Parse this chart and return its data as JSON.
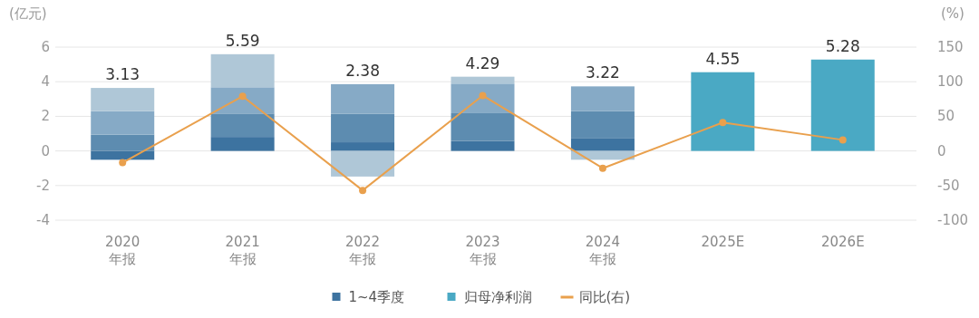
{
  "chart_data": {
    "type": "bar",
    "stacked": true,
    "categories": [
      "2020\n年报",
      "2021\n年报",
      "2022\n年报",
      "2023\n年报",
      "2024\n年报",
      "2025E",
      "2026E"
    ],
    "ylabel": "(亿元)",
    "y2label": "(%)",
    "ylim": [
      -4,
      6
    ],
    "yticks": [
      -4,
      -2,
      0,
      2,
      4,
      6
    ],
    "y2lim": [
      -100,
      150
    ],
    "y2ticks": [
      -100,
      -50,
      0,
      50,
      100,
      150
    ],
    "grid": "y",
    "legend": "bottom",
    "totals": [
      "3.13",
      "5.59",
      "2.38",
      "4.29",
      "3.22",
      "4.55",
      "5.28"
    ],
    "series": [
      {
        "name": "1~4季度",
        "color": "#3d73a0",
        "values": [
          -0.51,
          0.81,
          0.5,
          0.58,
          0.75,
          null,
          null
        ]
      },
      {
        "color": "#5d8cb0",
        "values": [
          0.94,
          1.35,
          1.64,
          1.6,
          1.55,
          null,
          null
        ]
      },
      {
        "color": "#86aac6",
        "values": [
          1.36,
          1.52,
          1.72,
          1.71,
          1.43,
          null,
          null
        ]
      },
      {
        "color": "#afc7d7",
        "values": [
          1.34,
          1.91,
          -1.48,
          0.4,
          -0.51,
          null,
          null
        ]
      },
      {
        "name": "归母净利润",
        "color": "#4aa9c4",
        "values": [
          null,
          null,
          null,
          null,
          null,
          4.55,
          5.28
        ]
      },
      {
        "name": "同比(右)",
        "type": "line",
        "axis": "y2",
        "color": "#e9a04d",
        "marker": "circle",
        "values": [
          -17,
          79,
          -57,
          80,
          -25,
          41,
          16
        ]
      }
    ]
  }
}
